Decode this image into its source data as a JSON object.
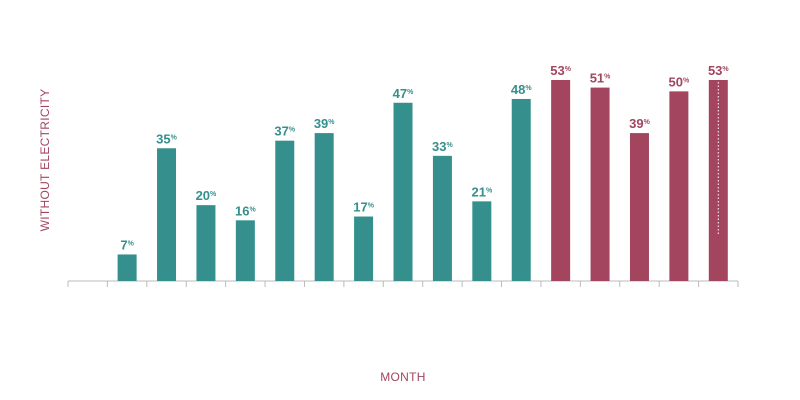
{
  "chart_data": {
    "type": "bar",
    "categories": [
      "",
      "",
      "",
      "",
      "",
      "",
      "",
      "",
      "",
      "",
      "",
      "",
      "",
      "",
      "",
      "",
      ""
    ],
    "values": [
      null,
      7,
      35,
      20,
      16,
      37,
      39,
      17,
      47,
      33,
      21,
      48,
      53,
      51,
      39,
      50,
      53
    ],
    "value_suffix": "%",
    "highlight_from_index": 12,
    "xlabel": "MONTH",
    "ylabel": "WITHOUT ELECTRICITY",
    "ylim": [
      0,
      53
    ],
    "grid": false,
    "colors": {
      "primary": "#35908d",
      "highlight": "#a3455f",
      "axis_title": "#a3455f",
      "axis_line": "#bbbbbb"
    }
  }
}
